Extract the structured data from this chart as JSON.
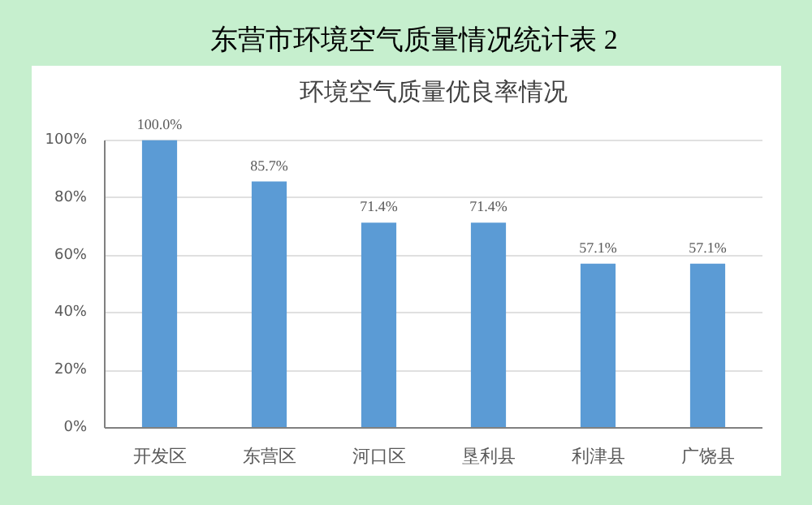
{
  "chart_data": {
    "type": "bar",
    "title": "环境空气质量优良率情况",
    "annotations": [
      "东营市环境空气质量情况统计表 2"
    ],
    "categories": [
      "开发区",
      "东营区",
      "河口区",
      "垦利县",
      "利津县",
      "广饶县"
    ],
    "values": [
      100.0,
      85.7,
      71.4,
      71.4,
      57.1,
      57.1
    ],
    "value_labels": [
      "100.0%",
      "85.7%",
      "71.4%",
      "71.4%",
      "57.1%",
      "57.1%"
    ],
    "color": "#5b9bd5",
    "ylim": [
      0,
      100
    ],
    "yticks": [
      {
        "value": 0,
        "label": "0%"
      },
      {
        "value": 20,
        "label": "20%"
      },
      {
        "value": 40,
        "label": "40%"
      },
      {
        "value": 60,
        "label": "60%"
      },
      {
        "value": 80,
        "label": "80%"
      },
      {
        "value": 100,
        "label": "100%"
      }
    ],
    "grid": "y"
  }
}
